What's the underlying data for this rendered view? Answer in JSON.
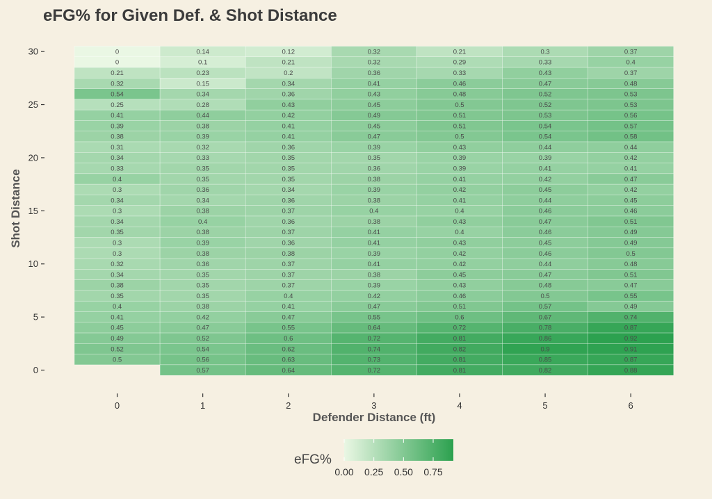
{
  "chart_data": {
    "type": "heatmap",
    "title": "eFG% for Given Def. & Shot Distance",
    "xlabel": "Defender Distance (ft)",
    "ylabel": "Shot Distance",
    "x_ticks": [
      0,
      1,
      2,
      3,
      4,
      5,
      6
    ],
    "y_ticks": [
      0,
      5,
      10,
      15,
      20,
      25,
      30
    ],
    "x_categories": [
      0,
      1,
      2,
      3,
      4,
      5,
      6
    ],
    "y_categories": [
      30,
      29,
      28,
      27,
      26,
      25,
      24,
      23,
      22,
      21,
      20,
      19,
      18,
      17,
      16,
      15,
      14,
      13,
      12,
      11,
      10,
      9,
      8,
      7,
      6,
      5,
      4,
      3,
      2,
      1,
      0
    ],
    "values": [
      [
        "0",
        "0.14",
        "0.12",
        "0.32",
        "0.21",
        "0.3",
        "0.37"
      ],
      [
        "0",
        "0.1",
        "0.21",
        "0.32",
        "0.29",
        "0.33",
        "0.4"
      ],
      [
        "0.21",
        "0.23",
        "0.2",
        "0.36",
        "0.33",
        "0.43",
        "0.37"
      ],
      [
        "0.32",
        "0.15",
        "0.34",
        "0.41",
        "0.46",
        "0.47",
        "0.48"
      ],
      [
        "0.54",
        "0.34",
        "0.36",
        "0.43",
        "0.48",
        "0.52",
        "0.53"
      ],
      [
        "0.25",
        "0.28",
        "0.43",
        "0.45",
        "0.5",
        "0.52",
        "0.53"
      ],
      [
        "0.41",
        "0.44",
        "0.42",
        "0.49",
        "0.51",
        "0.53",
        "0.56"
      ],
      [
        "0.39",
        "0.38",
        "0.41",
        "0.45",
        "0.51",
        "0.54",
        "0.57"
      ],
      [
        "0.38",
        "0.39",
        "0.41",
        "0.47",
        "0.5",
        "0.54",
        "0.58"
      ],
      [
        "0.31",
        "0.32",
        "0.36",
        "0.39",
        "0.43",
        "0.44",
        "0.44"
      ],
      [
        "0.34",
        "0.33",
        "0.35",
        "0.35",
        "0.39",
        "0.39",
        "0.42"
      ],
      [
        "0.33",
        "0.35",
        "0.35",
        "0.36",
        "0.39",
        "0.41",
        "0.41"
      ],
      [
        "0.4",
        "0.35",
        "0.35",
        "0.38",
        "0.41",
        "0.42",
        "0.47"
      ],
      [
        "0.3",
        "0.36",
        "0.34",
        "0.39",
        "0.42",
        "0.45",
        "0.42"
      ],
      [
        "0.34",
        "0.34",
        "0.36",
        "0.38",
        "0.41",
        "0.44",
        "0.45"
      ],
      [
        "0.3",
        "0.38",
        "0.37",
        "0.4",
        "0.4",
        "0.46",
        "0.46"
      ],
      [
        "0.34",
        "0.4",
        "0.36",
        "0.38",
        "0.43",
        "0.47",
        "0.51"
      ],
      [
        "0.35",
        "0.38",
        "0.37",
        "0.41",
        "0.4",
        "0.46",
        "0.49"
      ],
      [
        "0.3",
        "0.39",
        "0.36",
        "0.41",
        "0.43",
        "0.45",
        "0.49"
      ],
      [
        "0.3",
        "0.38",
        "0.38",
        "0.39",
        "0.42",
        "0.46",
        "0.5"
      ],
      [
        "0.32",
        "0.36",
        "0.37",
        "0.41",
        "0.42",
        "0.44",
        "0.48"
      ],
      [
        "0.34",
        "0.35",
        "0.37",
        "0.38",
        "0.45",
        "0.47",
        "0.51"
      ],
      [
        "0.38",
        "0.35",
        "0.37",
        "0.39",
        "0.43",
        "0.48",
        "0.47"
      ],
      [
        "0.35",
        "0.35",
        "0.4",
        "0.42",
        "0.46",
        "0.5",
        "0.55"
      ],
      [
        "0.4",
        "0.38",
        "0.41",
        "0.47",
        "0.51",
        "0.57",
        "0.49"
      ],
      [
        "0.41",
        "0.42",
        "0.47",
        "0.55",
        "0.6",
        "0.67",
        "0.74"
      ],
      [
        "0.45",
        "0.47",
        "0.55",
        "0.64",
        "0.72",
        "0.78",
        "0.87"
      ],
      [
        "0.49",
        "0.52",
        "0.6",
        "0.72",
        "0.81",
        "0.86",
        "0.92"
      ],
      [
        "0.52",
        "0.54",
        "0.62",
        "0.74",
        "0.82",
        "0.9",
        "0.91"
      ],
      [
        "0.5",
        "0.56",
        "0.63",
        "0.73",
        "0.81",
        "0.85",
        "0.87"
      ],
      [
        null,
        "0.57",
        "0.64",
        "0.72",
        "0.81",
        "0.82",
        "0.88"
      ]
    ],
    "color_scale": {
      "low": "#eaf7e4",
      "high": "#2ca14f",
      "min": 0,
      "max": 0.92
    },
    "legend": {
      "title": "eFG%",
      "ticks": [
        "0.00",
        "0.25",
        "0.50",
        "0.75"
      ],
      "position": "bottom"
    }
  },
  "colors": {
    "background": "#f6f0e2",
    "text": "#333333"
  }
}
